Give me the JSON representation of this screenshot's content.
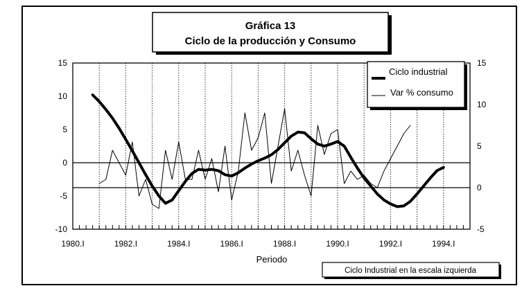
{
  "chart_data": {
    "type": "line",
    "title": "Gráfica 13",
    "subtitle": "Ciclo de la producción y Consumo",
    "xlabel": "Periodo",
    "ylabel": "",
    "xlim": [
      1980.0,
      1995.0
    ],
    "ylim": [
      -10,
      15
    ],
    "ylim_right": [
      -5,
      15
    ],
    "x_ticks": [
      {
        "value": 1980.0,
        "label": "1980.I"
      },
      {
        "value": 1982.0,
        "label": "1982.I"
      },
      {
        "value": 1984.0,
        "label": "1984.I"
      },
      {
        "value": 1986.0,
        "label": "1986.I"
      },
      {
        "value": 1988.0,
        "label": "1988.I"
      },
      {
        "value": 1990.0,
        "label": "1990.I"
      },
      {
        "value": 1992.0,
        "label": "1992.I"
      },
      {
        "value": 1994.0,
        "label": "1994.I"
      }
    ],
    "y_ticks_left": [
      "15",
      "10",
      "5",
      "0",
      "-5",
      "-10"
    ],
    "y_ticks_right": [
      "15",
      "10",
      "5",
      "0",
      "-5"
    ],
    "grid": "vertical at each 1st quarter, horizontal reference lines at left 0 and right 0",
    "legend_position": "top-right",
    "note": "Ciclo Industrial en la escala izquierda",
    "series": [
      {
        "name": "Ciclo industrial",
        "axis": "left",
        "style": "thick",
        "x": [
          1980.75,
          1981.0,
          1981.25,
          1981.5,
          1981.75,
          1982.0,
          1982.25,
          1982.5,
          1982.75,
          1983.0,
          1983.25,
          1983.5,
          1983.75,
          1984.0,
          1984.25,
          1984.5,
          1984.75,
          1985.0,
          1985.25,
          1985.5,
          1985.75,
          1986.0,
          1986.25,
          1986.5,
          1986.75,
          1987.0,
          1987.25,
          1987.5,
          1987.75,
          1988.0,
          1988.25,
          1988.5,
          1988.75,
          1989.0,
          1989.25,
          1989.5,
          1989.75,
          1990.0,
          1990.25,
          1990.5,
          1990.75,
          1991.0,
          1991.25,
          1991.5,
          1991.75,
          1992.0,
          1992.25,
          1992.5,
          1992.75,
          1993.0,
          1993.25,
          1993.5,
          1993.75,
          1994.0
        ],
        "values": [
          10.2,
          9.2,
          8.0,
          6.7,
          5.2,
          3.5,
          1.8,
          0.0,
          -1.8,
          -3.5,
          -5.0,
          -6.1,
          -5.6,
          -4.2,
          -2.8,
          -1.6,
          -1.0,
          -1.1,
          -1.0,
          -1.2,
          -1.8,
          -2.0,
          -1.5,
          -0.8,
          -0.2,
          0.3,
          0.7,
          1.2,
          2.0,
          3.0,
          4.0,
          4.6,
          4.5,
          3.6,
          2.8,
          2.5,
          2.8,
          3.2,
          2.5,
          0.8,
          -0.8,
          -2.3,
          -3.5,
          -4.7,
          -5.6,
          -6.2,
          -6.6,
          -6.5,
          -5.8,
          -4.7,
          -3.5,
          -2.3,
          -1.2,
          -0.7
        ]
      },
      {
        "name": "Var % consumo",
        "axis": "right",
        "style": "thin",
        "x": [
          1981.0,
          1981.25,
          1981.5,
          1981.75,
          1982.0,
          1982.25,
          1982.5,
          1982.75,
          1983.0,
          1983.25,
          1983.5,
          1983.75,
          1984.0,
          1984.25,
          1984.5,
          1984.75,
          1985.0,
          1985.25,
          1985.5,
          1985.75,
          1986.0,
          1986.25,
          1986.5,
          1986.75,
          1987.0,
          1987.25,
          1987.5,
          1987.75,
          1988.0,
          1988.25,
          1988.5,
          1988.75,
          1989.0,
          1989.25,
          1989.5,
          1989.75,
          1990.0,
          1990.25,
          1990.5,
          1990.75,
          1991.0,
          1991.25,
          1991.5,
          1991.75,
          1992.0,
          1992.25,
          1992.5,
          1992.75
        ],
        "values": [
          0.5,
          1.0,
          4.5,
          3.0,
          1.5,
          5.5,
          -1.0,
          1.0,
          -2.0,
          -2.5,
          4.5,
          1.0,
          5.5,
          1.0,
          1.0,
          4.5,
          1.0,
          3.5,
          -0.5,
          5.0,
          -1.5,
          2.0,
          9.0,
          4.5,
          6.0,
          9.0,
          0.5,
          5.0,
          9.5,
          2.0,
          4.5,
          1.5,
          -1.0,
          7.5,
          4.0,
          6.5,
          7.0,
          0.5,
          2.0,
          1.0,
          1.5,
          0.5,
          0.0,
          2.0,
          3.5,
          5.0,
          6.5,
          7.5
        ]
      }
    ]
  }
}
